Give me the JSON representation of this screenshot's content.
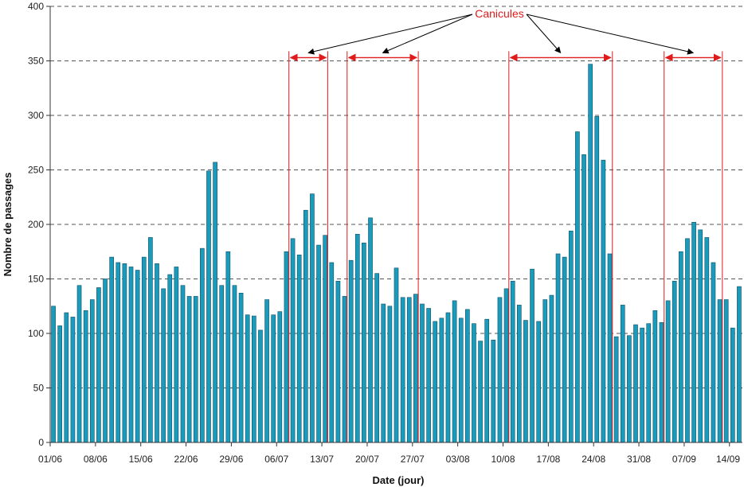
{
  "chart_data": {
    "type": "bar",
    "xlabel": "Date (jour)",
    "ylabel": "Nombre de passages",
    "ylim": [
      0,
      400
    ],
    "yticks": [
      0,
      50,
      100,
      150,
      200,
      250,
      300,
      350,
      400
    ],
    "grid": "horizontal dashed",
    "x_tick_labels": [
      {
        "label": "01/06",
        "day": 0
      },
      {
        "label": "08/06",
        "day": 7
      },
      {
        "label": "15/06",
        "day": 14
      },
      {
        "label": "22/06",
        "day": 21
      },
      {
        "label": "29/06",
        "day": 28
      },
      {
        "label": "06/07",
        "day": 35
      },
      {
        "label": "13/07",
        "day": 42
      },
      {
        "label": "20/07",
        "day": 49
      },
      {
        "label": "27/07",
        "day": 56
      },
      {
        "label": "03/08",
        "day": 63
      },
      {
        "label": "10/08",
        "day": 70
      },
      {
        "label": "17/08",
        "day": 77
      },
      {
        "label": "24/08",
        "day": 84
      },
      {
        "label": "31/08",
        "day": 91
      },
      {
        "label": "07/09",
        "day": 98
      },
      {
        "label": "14/09",
        "day": 105
      }
    ],
    "values": [
      125,
      107,
      119,
      115,
      144,
      121,
      131,
      142,
      150,
      170,
      165,
      164,
      161,
      158,
      170,
      188,
      164,
      141,
      154,
      161,
      144,
      134,
      134,
      178,
      249,
      257,
      144,
      175,
      144,
      137,
      117,
      116,
      103,
      131,
      117,
      120,
      175,
      187,
      172,
      213,
      228,
      181,
      190,
      165,
      148,
      134,
      167,
      191,
      183,
      206,
      155,
      127,
      125,
      160,
      133,
      133,
      136,
      127,
      123,
      111,
      114,
      119,
      130,
      114,
      122,
      109,
      93,
      113,
      94,
      133,
      141,
      148,
      126,
      112,
      159,
      111,
      131,
      135,
      173,
      170,
      194,
      285,
      264,
      347,
      299,
      259,
      173,
      97,
      126,
      98,
      108,
      105,
      109,
      121,
      110,
      130,
      148,
      175,
      187,
      202,
      195,
      188,
      165,
      131,
      131,
      105,
      143
    ],
    "bar_color": "#1a9bbc",
    "annotation": {
      "text": "Canicules",
      "color": "#e01b1b",
      "periods": [
        {
          "start": "08/07",
          "end": "13/07"
        },
        {
          "start": "17/07",
          "end": "27/07"
        },
        {
          "start": "11/08",
          "end": "26/08"
        },
        {
          "start": "04/09",
          "end": "12/09"
        }
      ]
    }
  }
}
